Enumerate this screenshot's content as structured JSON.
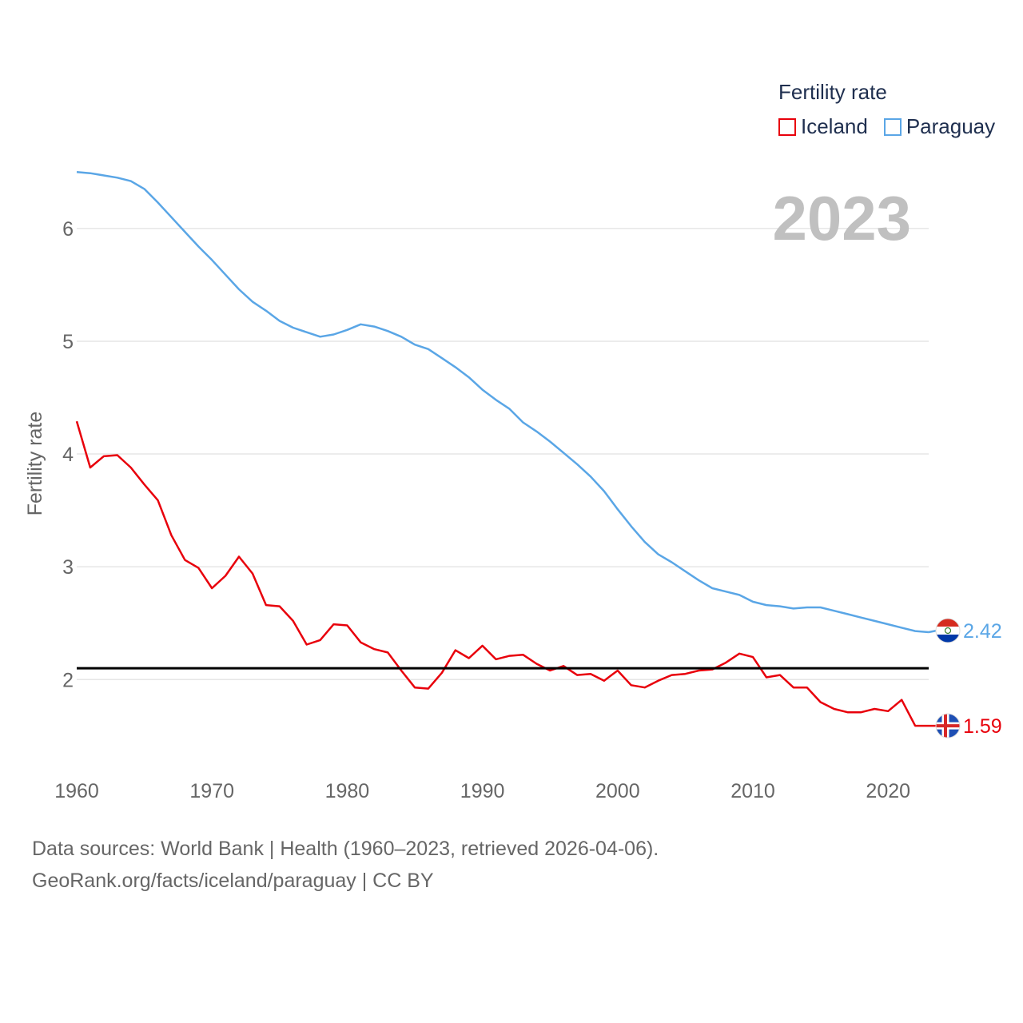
{
  "chart_data": {
    "type": "line",
    "title": "Fertility rate",
    "ylabel": "Fertility rate",
    "xlabel": "",
    "year_label": "2023",
    "xlim": [
      1960,
      2023
    ],
    "ylim": [
      1.35,
      6.75
    ],
    "x_ticks": [
      1960,
      1970,
      1980,
      1990,
      2000,
      2010,
      2020
    ],
    "y_ticks": [
      2,
      3,
      4,
      5,
      6
    ],
    "reference_line": 2.1,
    "x": [
      1960,
      1961,
      1962,
      1963,
      1964,
      1965,
      1966,
      1967,
      1968,
      1969,
      1970,
      1971,
      1972,
      1973,
      1974,
      1975,
      1976,
      1977,
      1978,
      1979,
      1980,
      1981,
      1982,
      1983,
      1984,
      1985,
      1986,
      1987,
      1988,
      1989,
      1990,
      1991,
      1992,
      1993,
      1994,
      1995,
      1996,
      1997,
      1998,
      1999,
      2000,
      2001,
      2002,
      2003,
      2004,
      2005,
      2006,
      2007,
      2008,
      2009,
      2010,
      2011,
      2012,
      2013,
      2014,
      2015,
      2016,
      2017,
      2018,
      2019,
      2020,
      2021,
      2022,
      2023
    ],
    "series": [
      {
        "name": "Iceland",
        "color": "#e8000b",
        "end_label": "1.59",
        "flag": "iceland-flag",
        "values": [
          4.29,
          3.88,
          3.98,
          3.99,
          3.88,
          3.73,
          3.59,
          3.28,
          3.06,
          2.99,
          2.81,
          2.92,
          3.09,
          2.94,
          2.66,
          2.65,
          2.52,
          2.31,
          2.35,
          2.49,
          2.48,
          2.33,
          2.27,
          2.24,
          2.08,
          1.93,
          1.92,
          2.06,
          2.26,
          2.19,
          2.3,
          2.18,
          2.21,
          2.22,
          2.14,
          2.08,
          2.12,
          2.04,
          2.05,
          1.99,
          2.08,
          1.95,
          1.93,
          1.99,
          2.04,
          2.05,
          2.08,
          2.09,
          2.15,
          2.23,
          2.2,
          2.02,
          2.04,
          1.93,
          1.93,
          1.8,
          1.74,
          1.71,
          1.71,
          1.74,
          1.72,
          1.82,
          1.59,
          1.59
        ]
      },
      {
        "name": "Paraguay",
        "color": "#5aa6e6",
        "end_label": "2.42",
        "flag": "paraguay-flag",
        "values": [
          6.5,
          6.49,
          6.47,
          6.45,
          6.42,
          6.35,
          6.23,
          6.1,
          5.97,
          5.84,
          5.72,
          5.59,
          5.46,
          5.35,
          5.27,
          5.18,
          5.12,
          5.08,
          5.04,
          5.06,
          5.1,
          5.15,
          5.13,
          5.09,
          5.04,
          4.97,
          4.93,
          4.85,
          4.77,
          4.68,
          4.57,
          4.48,
          4.4,
          4.28,
          4.2,
          4.11,
          4.01,
          3.91,
          3.8,
          3.67,
          3.51,
          3.36,
          3.22,
          3.11,
          3.04,
          2.96,
          2.88,
          2.81,
          2.78,
          2.75,
          2.69,
          2.66,
          2.65,
          2.63,
          2.64,
          2.64,
          2.61,
          2.58,
          2.55,
          2.52,
          2.49,
          2.46,
          2.43,
          2.42
        ]
      }
    ],
    "legend_position": "top-right"
  },
  "footer": {
    "line1": "Data sources: World Bank | Health (1960–2023, retrieved 2026-04-06).",
    "line2": "GeoRank.org/facts/iceland/paraguay | CC BY"
  }
}
